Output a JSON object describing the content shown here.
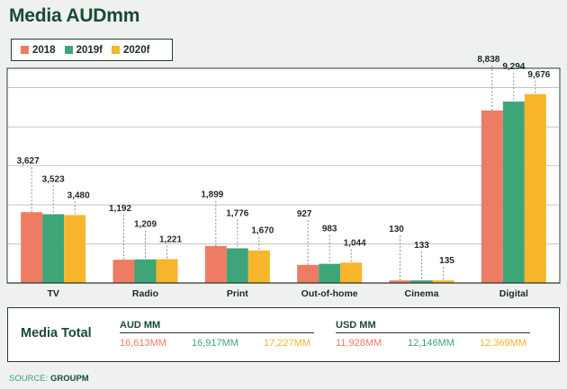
{
  "title": "Media AUDmm",
  "colors": {
    "2018": "#ee7b63",
    "2019f": "#3ea578",
    "2020f": "#f7b52c"
  },
  "chart_data": {
    "type": "bar",
    "categories": [
      "TV",
      "Radio",
      "Print",
      "Out-of-home",
      "Cinema",
      "Digital"
    ],
    "series": [
      {
        "name": "2018",
        "values": [
          3627,
          1192,
          1899,
          927,
          130,
          8838
        ]
      },
      {
        "name": "2019f",
        "values": [
          3523,
          1209,
          1776,
          983,
          133,
          9294
        ]
      },
      {
        "name": "2020f",
        "values": [
          3480,
          1221,
          1670,
          1044,
          135,
          9676
        ]
      }
    ],
    "data_labels": [
      [
        "3,627",
        "1,192",
        "1,899",
        "927",
        "130",
        "8,838"
      ],
      [
        "3,523",
        "1,209",
        "1,776",
        "983",
        "133",
        "9,294"
      ],
      [
        "3,480",
        "1,221",
        "1,670",
        "1,044",
        "135",
        "9,676"
      ]
    ],
    "ylim": [
      0,
      11000
    ],
    "grid": true,
    "legend": "top-left"
  },
  "totals": {
    "label": "Media Total",
    "aud": {
      "title": "AUD MM",
      "values": [
        "16,613MM",
        "16,917MM",
        "17,227MM"
      ]
    },
    "usd": {
      "title": "USD MM",
      "values": [
        "11,928MM",
        "12,146MM",
        "12,369MM"
      ]
    }
  },
  "source": {
    "prefix": "SOURCE: ",
    "name": "GROUPM"
  }
}
